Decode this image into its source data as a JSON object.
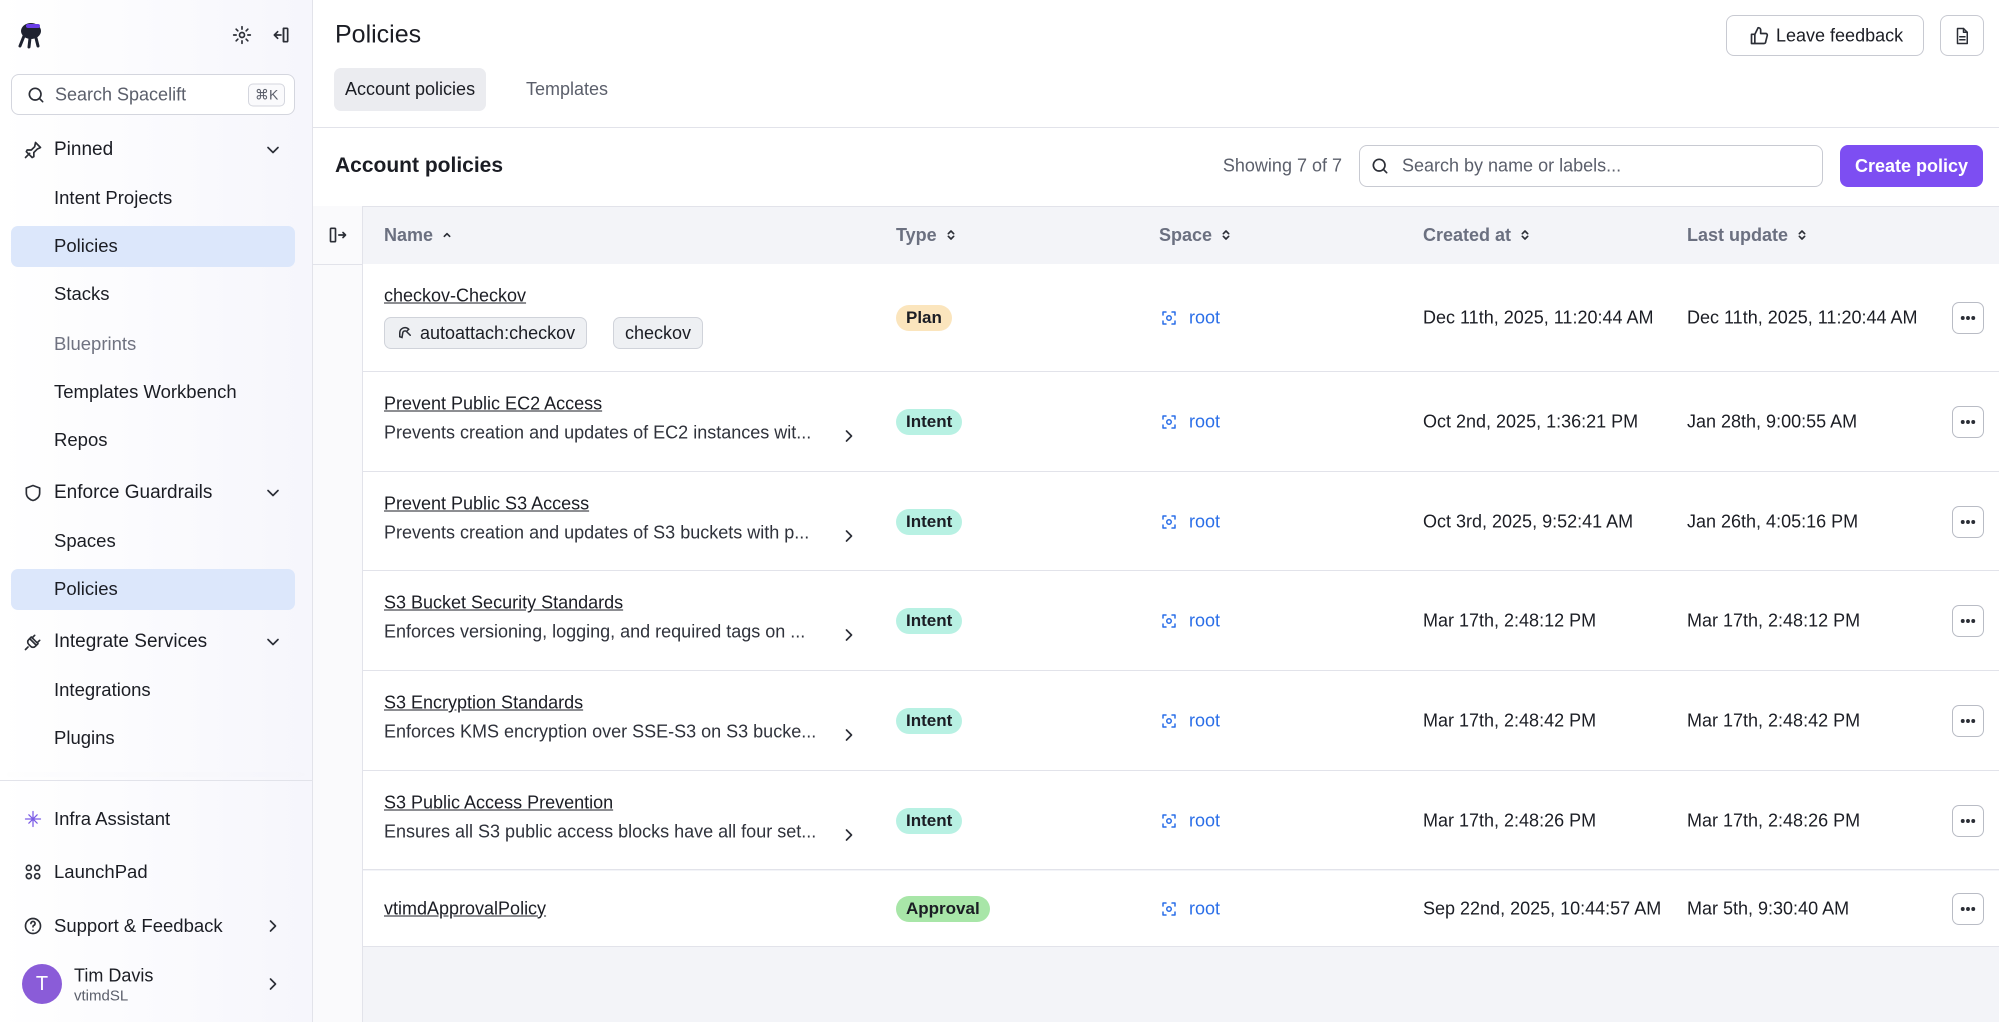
{
  "sidebar": {
    "search": {
      "placeholder": "Search Spacelift",
      "shortcut": "⌘K"
    },
    "nav": [
      {
        "label": "Pinned",
        "items": [
          {
            "label": "Intent Projects"
          },
          {
            "label": "Policies",
            "active": true
          },
          {
            "label": "Stacks"
          }
        ]
      },
      {
        "items": [
          {
            "label": "Blueprints",
            "faded": true
          },
          {
            "label": "Templates Workbench"
          },
          {
            "label": "Repos"
          }
        ]
      },
      {
        "label": "Enforce Guardrails",
        "items": [
          {
            "label": "Spaces"
          },
          {
            "label": "Policies",
            "active": true
          }
        ]
      },
      {
        "label": "Integrate Services",
        "items": [
          {
            "label": "Integrations"
          },
          {
            "label": "Plugins"
          }
        ]
      }
    ],
    "footer": [
      "Infra Assistant",
      "LaunchPad",
      "Support & Feedback"
    ],
    "user": {
      "initial": "T",
      "name": "Tim Davis",
      "org": "vtimdSL"
    }
  },
  "header": {
    "title": "Policies",
    "feedback": "Leave feedback",
    "tabs": [
      {
        "label": "Account policies",
        "active": true
      },
      {
        "label": "Templates"
      }
    ]
  },
  "section": {
    "title": "Account policies",
    "count": "Showing 7 of 7",
    "search_placeholder": "Search by name or labels...",
    "create": "Create policy"
  },
  "table": {
    "columns": [
      {
        "label": "Name",
        "sort": "asc"
      },
      {
        "label": "Type"
      },
      {
        "label": "Space"
      },
      {
        "label": "Created at"
      },
      {
        "label": "Last update"
      }
    ],
    "rows": [
      {
        "name": "checkov-Checkov",
        "labels": [
          "autoattach:checkov",
          "checkov"
        ],
        "type": "Plan",
        "type_color": "#fbe5bd",
        "space": "root",
        "created": "Dec 11th, 2025, 11:20:44 AM",
        "updated": "Dec 11th, 2025, 11:20:44 AM"
      },
      {
        "name": "Prevent Public EC2 Access",
        "description": "Prevents creation and updates of EC2 instances wit...",
        "type": "Intent",
        "type_color": "#b8f1e3",
        "space": "root",
        "created": "Oct 2nd, 2025, 1:36:21 PM",
        "updated": "Jan 28th, 9:00:55 AM"
      },
      {
        "name": "Prevent Public S3 Access",
        "description": "Prevents creation and updates of S3 buckets with p...",
        "type": "Intent",
        "type_color": "#b8f1e3",
        "space": "root",
        "created": "Oct 3rd, 2025, 9:52:41 AM",
        "updated": "Jan 26th, 4:05:16 PM"
      },
      {
        "name": "S3 Bucket Security Standards",
        "description": "Enforces versioning, logging, and required tags on ...",
        "type": "Intent",
        "type_color": "#b8f1e3",
        "space": "root",
        "created": "Mar 17th, 2:48:12 PM",
        "updated": "Mar 17th, 2:48:12 PM"
      },
      {
        "name": "S3 Encryption Standards",
        "description": "Enforces KMS encryption over SSE-S3 on S3 bucke...",
        "type": "Intent",
        "type_color": "#b8f1e3",
        "space": "root",
        "created": "Mar 17th, 2:48:42 PM",
        "updated": "Mar 17th, 2:48:42 PM"
      },
      {
        "name": "S3 Public Access Prevention",
        "description": "Ensures all S3 public access blocks have all four set...",
        "type": "Intent",
        "type_color": "#b8f1e3",
        "space": "root",
        "created": "Mar 17th, 2:48:26 PM",
        "updated": "Mar 17th, 2:48:26 PM"
      },
      {
        "name": "vtimdApprovalPolicy",
        "type": "Approval",
        "type_color": "#a8e6a8",
        "space": "root",
        "created": "Sep 22nd, 2025, 10:44:57 AM",
        "updated": "Mar 5th, 9:30:40 AM"
      }
    ]
  }
}
